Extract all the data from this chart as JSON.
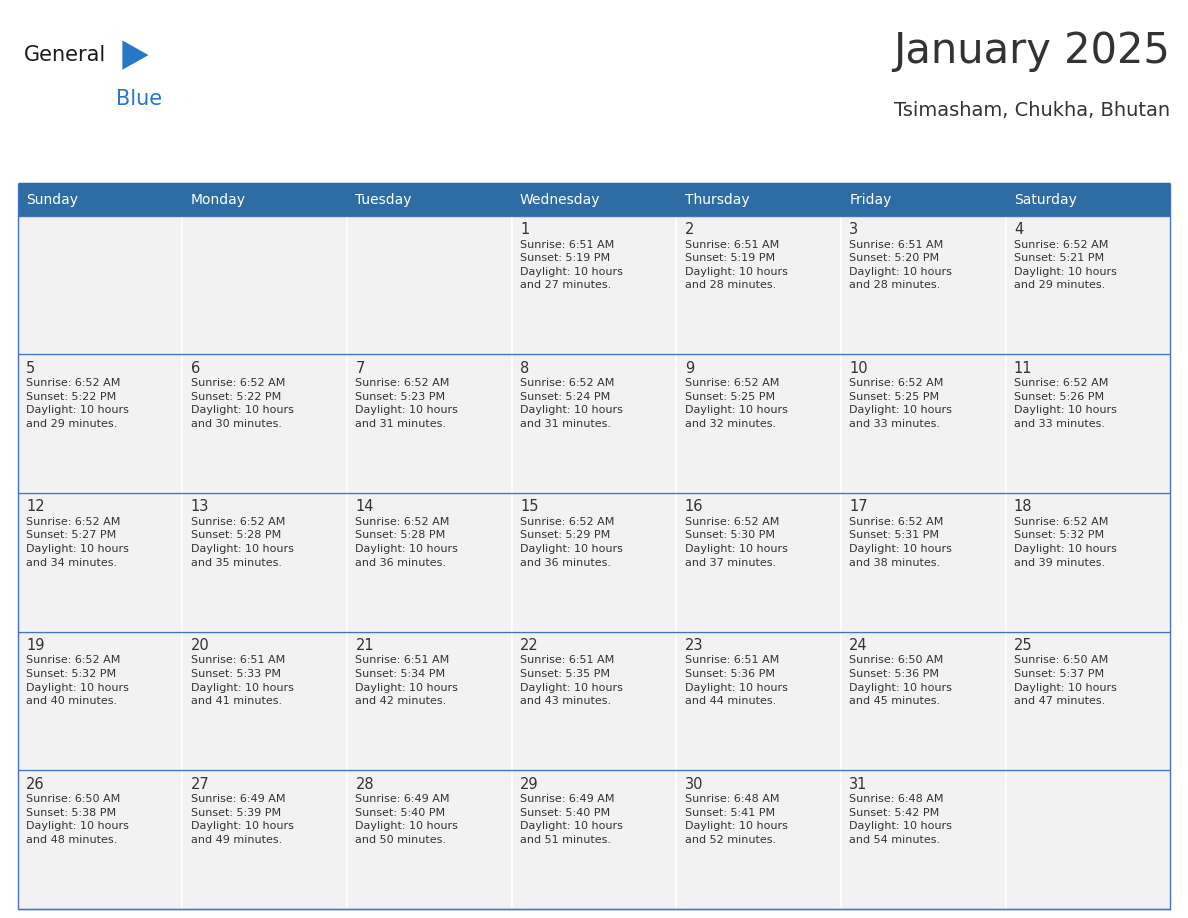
{
  "title": "January 2025",
  "subtitle": "Tsimasham, Chukha, Bhutan",
  "header_bg": "#2E6DA4",
  "header_text": "#FFFFFF",
  "cell_bg": "#F2F2F2",
  "border_color": "#2E6DA4",
  "row_line_color": "#4472C4",
  "text_color": "#333333",
  "days_of_week": [
    "Sunday",
    "Monday",
    "Tuesday",
    "Wednesday",
    "Thursday",
    "Friday",
    "Saturday"
  ],
  "weeks": [
    [
      {
        "day": "",
        "info": ""
      },
      {
        "day": "",
        "info": ""
      },
      {
        "day": "",
        "info": ""
      },
      {
        "day": "1",
        "info": "Sunrise: 6:51 AM\nSunset: 5:19 PM\nDaylight: 10 hours\nand 27 minutes."
      },
      {
        "day": "2",
        "info": "Sunrise: 6:51 AM\nSunset: 5:19 PM\nDaylight: 10 hours\nand 28 minutes."
      },
      {
        "day": "3",
        "info": "Sunrise: 6:51 AM\nSunset: 5:20 PM\nDaylight: 10 hours\nand 28 minutes."
      },
      {
        "day": "4",
        "info": "Sunrise: 6:52 AM\nSunset: 5:21 PM\nDaylight: 10 hours\nand 29 minutes."
      }
    ],
    [
      {
        "day": "5",
        "info": "Sunrise: 6:52 AM\nSunset: 5:22 PM\nDaylight: 10 hours\nand 29 minutes."
      },
      {
        "day": "6",
        "info": "Sunrise: 6:52 AM\nSunset: 5:22 PM\nDaylight: 10 hours\nand 30 minutes."
      },
      {
        "day": "7",
        "info": "Sunrise: 6:52 AM\nSunset: 5:23 PM\nDaylight: 10 hours\nand 31 minutes."
      },
      {
        "day": "8",
        "info": "Sunrise: 6:52 AM\nSunset: 5:24 PM\nDaylight: 10 hours\nand 31 minutes."
      },
      {
        "day": "9",
        "info": "Sunrise: 6:52 AM\nSunset: 5:25 PM\nDaylight: 10 hours\nand 32 minutes."
      },
      {
        "day": "10",
        "info": "Sunrise: 6:52 AM\nSunset: 5:25 PM\nDaylight: 10 hours\nand 33 minutes."
      },
      {
        "day": "11",
        "info": "Sunrise: 6:52 AM\nSunset: 5:26 PM\nDaylight: 10 hours\nand 33 minutes."
      }
    ],
    [
      {
        "day": "12",
        "info": "Sunrise: 6:52 AM\nSunset: 5:27 PM\nDaylight: 10 hours\nand 34 minutes."
      },
      {
        "day": "13",
        "info": "Sunrise: 6:52 AM\nSunset: 5:28 PM\nDaylight: 10 hours\nand 35 minutes."
      },
      {
        "day": "14",
        "info": "Sunrise: 6:52 AM\nSunset: 5:28 PM\nDaylight: 10 hours\nand 36 minutes."
      },
      {
        "day": "15",
        "info": "Sunrise: 6:52 AM\nSunset: 5:29 PM\nDaylight: 10 hours\nand 36 minutes."
      },
      {
        "day": "16",
        "info": "Sunrise: 6:52 AM\nSunset: 5:30 PM\nDaylight: 10 hours\nand 37 minutes."
      },
      {
        "day": "17",
        "info": "Sunrise: 6:52 AM\nSunset: 5:31 PM\nDaylight: 10 hours\nand 38 minutes."
      },
      {
        "day": "18",
        "info": "Sunrise: 6:52 AM\nSunset: 5:32 PM\nDaylight: 10 hours\nand 39 minutes."
      }
    ],
    [
      {
        "day": "19",
        "info": "Sunrise: 6:52 AM\nSunset: 5:32 PM\nDaylight: 10 hours\nand 40 minutes."
      },
      {
        "day": "20",
        "info": "Sunrise: 6:51 AM\nSunset: 5:33 PM\nDaylight: 10 hours\nand 41 minutes."
      },
      {
        "day": "21",
        "info": "Sunrise: 6:51 AM\nSunset: 5:34 PM\nDaylight: 10 hours\nand 42 minutes."
      },
      {
        "day": "22",
        "info": "Sunrise: 6:51 AM\nSunset: 5:35 PM\nDaylight: 10 hours\nand 43 minutes."
      },
      {
        "day": "23",
        "info": "Sunrise: 6:51 AM\nSunset: 5:36 PM\nDaylight: 10 hours\nand 44 minutes."
      },
      {
        "day": "24",
        "info": "Sunrise: 6:50 AM\nSunset: 5:36 PM\nDaylight: 10 hours\nand 45 minutes."
      },
      {
        "day": "25",
        "info": "Sunrise: 6:50 AM\nSunset: 5:37 PM\nDaylight: 10 hours\nand 47 minutes."
      }
    ],
    [
      {
        "day": "26",
        "info": "Sunrise: 6:50 AM\nSunset: 5:38 PM\nDaylight: 10 hours\nand 48 minutes."
      },
      {
        "day": "27",
        "info": "Sunrise: 6:49 AM\nSunset: 5:39 PM\nDaylight: 10 hours\nand 49 minutes."
      },
      {
        "day": "28",
        "info": "Sunrise: 6:49 AM\nSunset: 5:40 PM\nDaylight: 10 hours\nand 50 minutes."
      },
      {
        "day": "29",
        "info": "Sunrise: 6:49 AM\nSunset: 5:40 PM\nDaylight: 10 hours\nand 51 minutes."
      },
      {
        "day": "30",
        "info": "Sunrise: 6:48 AM\nSunset: 5:41 PM\nDaylight: 10 hours\nand 52 minutes."
      },
      {
        "day": "31",
        "info": "Sunrise: 6:48 AM\nSunset: 5:42 PM\nDaylight: 10 hours\nand 54 minutes."
      },
      {
        "day": "",
        "info": ""
      }
    ]
  ],
  "logo_general_color": "#1a1a1a",
  "logo_blue_color": "#2777C8",
  "logo_triangle_color": "#2777C8",
  "figsize": [
    11.88,
    9.18
  ],
  "dpi": 100
}
